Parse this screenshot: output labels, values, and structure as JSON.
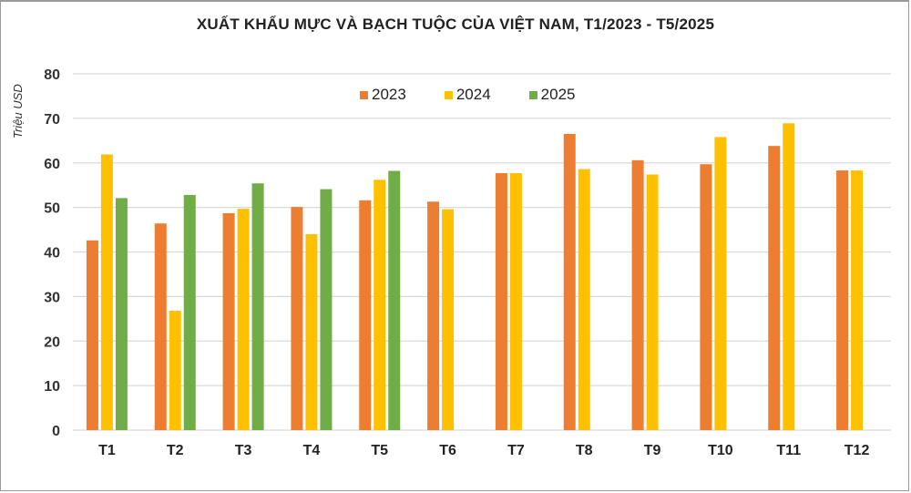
{
  "chart_data": {
    "type": "bar",
    "title": "XUẤT KHẨU MỰC VÀ BẠCH TUỘC CỦA VIỆT NAM, T1/2023 - T5/2025",
    "xlabel": "",
    "ylabel": "Triệu USD",
    "ylim": [
      0,
      80
    ],
    "yticks": [
      0,
      10,
      20,
      30,
      40,
      50,
      60,
      70,
      80
    ],
    "grid": true,
    "legend_position": "top-inside",
    "categories": [
      "T1",
      "T2",
      "T3",
      "T4",
      "T5",
      "T6",
      "T7",
      "T8",
      "T9",
      "T10",
      "T11",
      "T12"
    ],
    "series": [
      {
        "name": "2023",
        "color": "#ED7D31",
        "values": [
          42.6,
          46.4,
          48.7,
          50.1,
          51.6,
          51.3,
          57.7,
          66.5,
          60.6,
          59.7,
          63.8,
          58.3
        ]
      },
      {
        "name": "2024",
        "color": "#FFC000",
        "values": [
          61.9,
          26.8,
          49.7,
          44.0,
          56.2,
          49.6,
          57.7,
          58.6,
          57.4,
          65.8,
          68.9,
          58.3
        ]
      },
      {
        "name": "2025",
        "color": "#70AD47",
        "values": [
          52.1,
          52.8,
          55.4,
          54.1,
          58.2,
          null,
          null,
          null,
          null,
          null,
          null,
          null
        ]
      }
    ]
  }
}
